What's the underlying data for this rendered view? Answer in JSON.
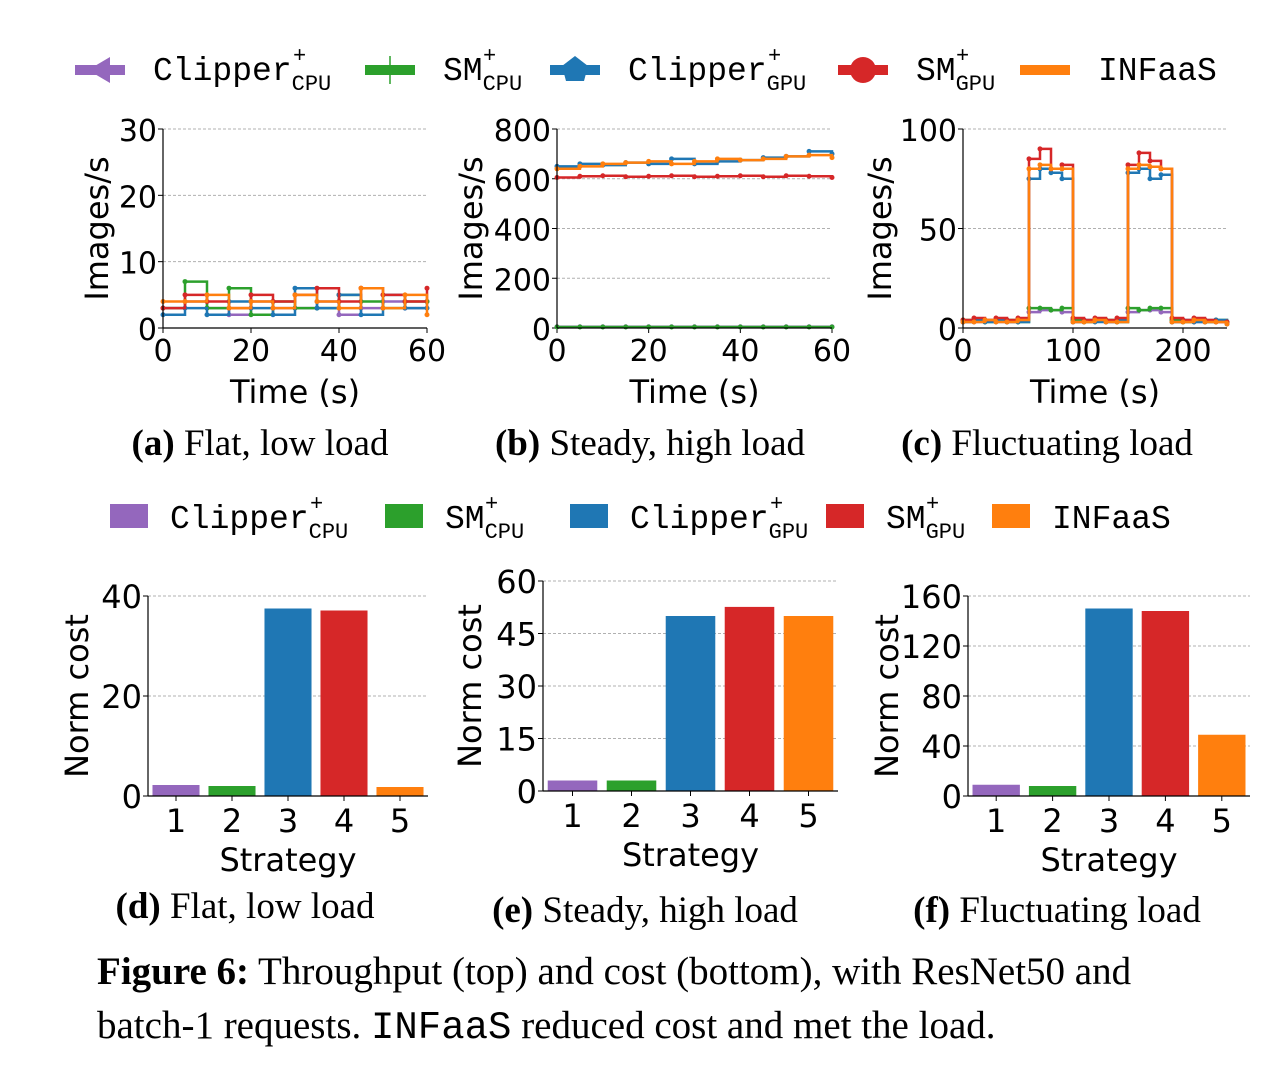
{
  "colors": {
    "clipper_cpu": "#9467bd",
    "sm_cpu": "#2ca02c",
    "clipper_gpu": "#1f77b4",
    "sm_gpu": "#d62728",
    "infaas": "#ff7f0e"
  },
  "legend_top": [
    {
      "base": "Clipper",
      "sup": "+",
      "sub": "CPU",
      "marker": "triangle-left",
      "key": "clipper_cpu"
    },
    {
      "base": "SM",
      "sup": "+",
      "sub": "CPU",
      "marker": "plus",
      "key": "sm_cpu"
    },
    {
      "base": "Clipper",
      "sup": "+",
      "sub": "GPU",
      "marker": "pentagon",
      "key": "clipper_gpu"
    },
    {
      "base": "SM",
      "sup": "+",
      "sub": "GPU",
      "marker": "circle",
      "key": "sm_gpu"
    },
    {
      "base": "INFaaS",
      "sup": "",
      "sub": "",
      "marker": "line",
      "key": "infaas"
    }
  ],
  "legend_bottom": [
    {
      "base": "Clipper",
      "sup": "+",
      "sub": "CPU",
      "key": "clipper_cpu"
    },
    {
      "base": "SM",
      "sup": "+",
      "sub": "CPU",
      "key": "sm_cpu"
    },
    {
      "base": "Clipper",
      "sup": "+",
      "sub": "GPU",
      "key": "clipper_gpu"
    },
    {
      "base": "SM",
      "sup": "+",
      "sub": "GPU",
      "key": "sm_gpu"
    },
    {
      "base": "INFaaS",
      "sup": "",
      "sub": "",
      "key": "infaas"
    }
  ],
  "chart_data": [
    {
      "type": "line",
      "panel": "a",
      "caption_label": "(a)",
      "caption": "Flat, low load",
      "xlabel": "Time (s)",
      "ylabel": "Images/s",
      "xlim": [
        0,
        60
      ],
      "ylim": [
        0,
        30
      ],
      "xticks": [
        0,
        20,
        40,
        60
      ],
      "yticks": [
        0,
        10,
        20,
        30
      ],
      "grid": "y",
      "x": [
        0,
        5,
        10,
        15,
        20,
        25,
        30,
        35,
        40,
        45,
        50,
        55,
        60
      ],
      "series": [
        {
          "key": "clipper_cpu",
          "values": [
            3,
            4,
            3,
            2,
            4,
            3,
            3,
            4,
            2,
            3,
            4,
            3,
            4
          ]
        },
        {
          "key": "sm_cpu",
          "values": [
            3,
            7,
            3,
            6,
            2,
            4,
            3,
            3,
            5,
            4,
            3,
            4,
            4
          ]
        },
        {
          "key": "clipper_gpu",
          "values": [
            2,
            3,
            2,
            4,
            3,
            2,
            6,
            3,
            5,
            2,
            5,
            3,
            3
          ]
        },
        {
          "key": "sm_gpu",
          "values": [
            3,
            5,
            4,
            3,
            5,
            4,
            5,
            6,
            4,
            6,
            5,
            4,
            6
          ]
        },
        {
          "key": "infaas",
          "values": [
            4,
            4,
            5,
            3,
            4,
            3,
            5,
            4,
            3,
            6,
            3,
            5,
            2
          ]
        }
      ]
    },
    {
      "type": "line",
      "panel": "b",
      "caption_label": "(b)",
      "caption": "Steady, high load",
      "xlabel": "Time (s)",
      "ylabel": "Images/s",
      "xlim": [
        0,
        60
      ],
      "ylim": [
        0,
        800
      ],
      "xticks": [
        0,
        20,
        40,
        60
      ],
      "yticks": [
        0,
        200,
        400,
        600,
        800
      ],
      "grid": "y",
      "x": [
        0,
        5,
        10,
        15,
        20,
        25,
        30,
        35,
        40,
        45,
        50,
        55,
        60
      ],
      "series": [
        {
          "key": "clipper_cpu",
          "values": [
            5,
            5,
            5,
            5,
            5,
            5,
            5,
            5,
            5,
            5,
            5,
            5,
            5
          ]
        },
        {
          "key": "sm_cpu",
          "values": [
            4,
            4,
            4,
            4,
            4,
            4,
            4,
            4,
            4,
            4,
            4,
            4,
            4
          ]
        },
        {
          "key": "clipper_gpu",
          "values": [
            650,
            660,
            655,
            665,
            660,
            680,
            660,
            670,
            675,
            685,
            690,
            710,
            700
          ]
        },
        {
          "key": "sm_gpu",
          "values": [
            605,
            610,
            612,
            608,
            610,
            612,
            608,
            610,
            612,
            608,
            612,
            610,
            605
          ]
        },
        {
          "key": "infaas",
          "values": [
            640,
            650,
            660,
            665,
            670,
            660,
            670,
            680,
            675,
            680,
            690,
            695,
            685
          ]
        }
      ]
    },
    {
      "type": "line",
      "panel": "c",
      "caption_label": "(c)",
      "caption": "Fluctuating load",
      "xlabel": "Time (s)",
      "ylabel": "Images/s",
      "xlim": [
        0,
        240
      ],
      "ylim": [
        0,
        100
      ],
      "xticks": [
        0,
        100,
        200
      ],
      "yticks": [
        0,
        50,
        100
      ],
      "grid": "y",
      "x": [
        0,
        10,
        20,
        30,
        40,
        50,
        60,
        70,
        80,
        90,
        100,
        110,
        120,
        130,
        140,
        150,
        160,
        170,
        180,
        190,
        200,
        210,
        220,
        230,
        240
      ],
      "series": [
        {
          "key": "clipper_cpu",
          "values": [
            3,
            3,
            4,
            3,
            3,
            4,
            8,
            9,
            9,
            8,
            3,
            3,
            4,
            3,
            3,
            8,
            9,
            9,
            8,
            3,
            3,
            3,
            4,
            3,
            3
          ]
        },
        {
          "key": "sm_cpu",
          "values": [
            4,
            4,
            3,
            4,
            4,
            3,
            10,
            10,
            9,
            10,
            4,
            3,
            4,
            4,
            3,
            10,
            9,
            10,
            10,
            4,
            3,
            4,
            3,
            4,
            3
          ]
        },
        {
          "key": "clipper_gpu",
          "values": [
            3,
            4,
            3,
            4,
            3,
            3,
            75,
            80,
            78,
            75,
            3,
            4,
            3,
            3,
            4,
            78,
            80,
            75,
            77,
            3,
            4,
            3,
            3,
            4,
            2
          ]
        },
        {
          "key": "sm_gpu",
          "values": [
            4,
            5,
            4,
            5,
            4,
            5,
            85,
            90,
            80,
            82,
            5,
            4,
            5,
            4,
            5,
            82,
            88,
            84,
            80,
            5,
            4,
            5,
            4,
            3,
            3
          ]
        },
        {
          "key": "infaas",
          "values": [
            3,
            3,
            4,
            3,
            3,
            4,
            80,
            82,
            80,
            80,
            3,
            3,
            4,
            3,
            3,
            80,
            82,
            81,
            80,
            3,
            3,
            4,
            3,
            3,
            2
          ]
        }
      ]
    },
    {
      "type": "bar",
      "panel": "d",
      "caption_label": "(d)",
      "caption": "Flat, low load",
      "xlabel": "Strategy",
      "ylabel": "Norm cost",
      "categories": [
        "1",
        "2",
        "3",
        "4",
        "5"
      ],
      "values": [
        2.2,
        2.0,
        37.5,
        37.1,
        1.8
      ],
      "ylim": [
        0,
        40
      ],
      "yticks": [
        0,
        20,
        40
      ],
      "grid": "y"
    },
    {
      "type": "bar",
      "panel": "e",
      "caption_label": "(e)",
      "caption": "Steady, high load",
      "xlabel": "Strategy",
      "ylabel": "Norm cost",
      "categories": [
        "1",
        "2",
        "3",
        "4",
        "5"
      ],
      "values": [
        3.0,
        3.0,
        50.0,
        52.6,
        50.0
      ],
      "ylim": [
        0,
        60
      ],
      "yticks": [
        0,
        15,
        30,
        45,
        60
      ],
      "grid": "y"
    },
    {
      "type": "bar",
      "panel": "f",
      "caption_label": "(f)",
      "caption": "Fluctuating load",
      "xlabel": "Strategy",
      "ylabel": "Norm cost",
      "categories": [
        "1",
        "2",
        "3",
        "4",
        "5"
      ],
      "values": [
        9,
        8,
        150,
        148,
        49
      ],
      "ylim": [
        0,
        160
      ],
      "yticks": [
        0,
        40,
        80,
        120,
        160
      ],
      "grid": "y"
    }
  ],
  "figure_caption": {
    "label": "Figure 6:",
    "text1": " Throughput (top) and cost (bottom), with ResNet50 and batch-1 requests. ",
    "mono": "INFaaS",
    "text2": " reduced cost and met the load."
  }
}
